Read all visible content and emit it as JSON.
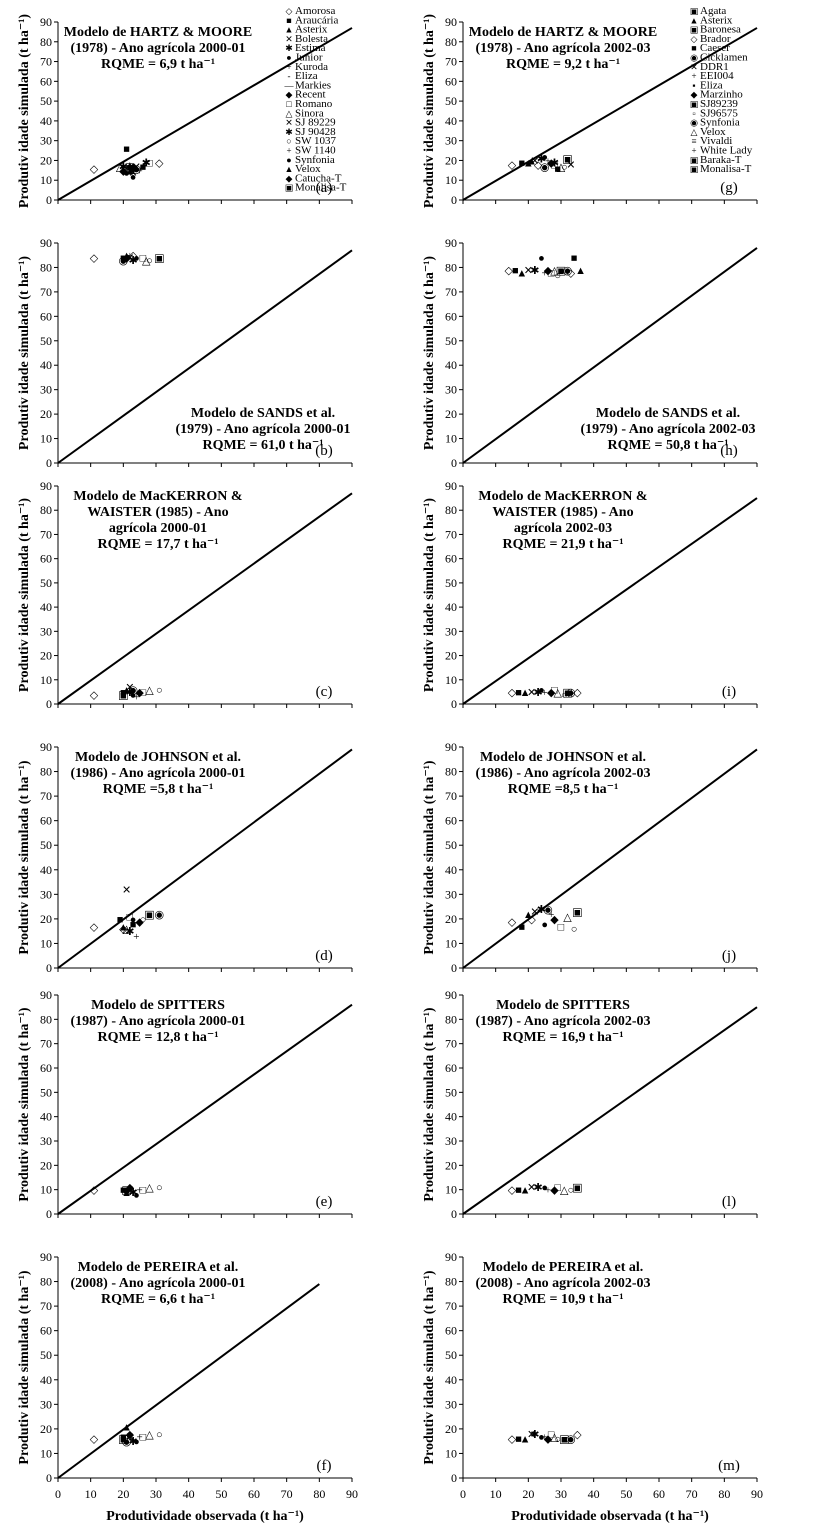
{
  "axis_ticks": [
    "0",
    "10",
    "20",
    "30",
    "40",
    "50",
    "60",
    "70",
    "80",
    "90"
  ],
  "chart_data": [
    {
      "id": "a",
      "type": "scatter",
      "letter": "(a)",
      "ylabel": "Produtiv idade simulada (t ha⁻¹)",
      "xlabel": "",
      "annotation": [
        "Modelo de HARTZ & MOORE",
        "(1978) - Ano agrícola 2000-01",
        "RQME = 6,9 t ha⁻¹"
      ],
      "ann_pos": "top-left",
      "xlim": [
        0,
        90
      ],
      "ylim": [
        0,
        90
      ],
      "line": [
        [
          0,
          0
        ],
        [
          90,
          87
        ]
      ],
      "points": [
        [
          11,
          16
        ],
        [
          21,
          26
        ],
        [
          22,
          18
        ],
        [
          23,
          14
        ],
        [
          20,
          17
        ],
        [
          23,
          12
        ],
        [
          25,
          15
        ],
        [
          20,
          15
        ],
        [
          22,
          16
        ],
        [
          19,
          17
        ],
        [
          21,
          15
        ],
        [
          22,
          17
        ],
        [
          24,
          16
        ],
        [
          31,
          19
        ],
        [
          26,
          17
        ],
        [
          22,
          15
        ],
        [
          24,
          17
        ],
        [
          27,
          19
        ],
        [
          21,
          14
        ],
        [
          21,
          17
        ],
        [
          23,
          17
        ],
        [
          28,
          19
        ],
        [
          22,
          16
        ]
      ]
    },
    {
      "id": "g",
      "type": "scatter",
      "letter": "(g)",
      "ylabel": "Produtiv idade simulada (t ha⁻¹)",
      "xlabel": "",
      "annotation": [
        "Modelo de HARTZ & MOORE",
        "(1978) - Ano agrícola 2002-03",
        "RQME = 9,2 t ha⁻¹"
      ],
      "ann_pos": "top-left",
      "xlim": [
        0,
        90
      ],
      "ylim": [
        0,
        90
      ],
      "line": [
        [
          0,
          0
        ],
        [
          90,
          87
        ]
      ],
      "points": [
        [
          15,
          18
        ],
        [
          18,
          19
        ],
        [
          20,
          19
        ],
        [
          22,
          20
        ],
        [
          24,
          21
        ],
        [
          25,
          22
        ],
        [
          26,
          20
        ],
        [
          27,
          19
        ],
        [
          28,
          18
        ],
        [
          30,
          17
        ],
        [
          31,
          17
        ],
        [
          32,
          21
        ],
        [
          25,
          17
        ],
        [
          23,
          18
        ],
        [
          29,
          16
        ],
        [
          21,
          20
        ],
        [
          33,
          18
        ],
        [
          28,
          19
        ]
      ]
    },
    {
      "id": "b",
      "type": "scatter",
      "letter": "(b)",
      "ylabel": "Produtiv idade simulada (t ha⁻¹)",
      "xlabel": "",
      "annotation": [
        "Modelo de SANDS et al.",
        "(1979) - Ano agrícola 2000-01",
        "RQME = 61,0 t ha⁻¹"
      ],
      "ann_pos": "bottom-right",
      "xlim": [
        0,
        90
      ],
      "ylim": [
        0,
        90
      ],
      "line": [
        [
          0,
          0
        ],
        [
          90,
          87
        ]
      ],
      "points": [
        [
          11,
          84
        ],
        [
          20,
          84
        ],
        [
          21,
          85
        ],
        [
          22,
          84
        ],
        [
          23,
          83
        ],
        [
          24,
          84
        ],
        [
          22,
          85
        ],
        [
          21,
          84
        ],
        [
          26,
          84
        ],
        [
          27,
          83
        ],
        [
          28,
          83
        ],
        [
          31,
          84
        ],
        [
          20,
          83
        ],
        [
          23,
          85
        ]
      ]
    },
    {
      "id": "h",
      "type": "scatter",
      "letter": "(h)",
      "ylabel": "Produtiv idade simulada (t ha⁻¹)",
      "xlabel": "",
      "annotation": [
        "Modelo de SANDS  et al.",
        "(1979) -  Ano agrícola 2002-03",
        "RQME = 50,8 t ha⁻¹"
      ],
      "ann_pos": "bottom-right",
      "xlim": [
        0,
        90
      ],
      "ylim": [
        0,
        90
      ],
      "line": [
        [
          0,
          0
        ],
        [
          90,
          88
        ]
      ],
      "points": [
        [
          14,
          79
        ],
        [
          16,
          79
        ],
        [
          18,
          78
        ],
        [
          20,
          79
        ],
        [
          22,
          79
        ],
        [
          24,
          84
        ],
        [
          25,
          78
        ],
        [
          26,
          79
        ],
        [
          27,
          78
        ],
        [
          28,
          79
        ],
        [
          29,
          77
        ],
        [
          30,
          79
        ],
        [
          32,
          79
        ],
        [
          33,
          78
        ],
        [
          34,
          84
        ],
        [
          36,
          79
        ]
      ]
    },
    {
      "id": "c",
      "type": "scatter",
      "letter": "(c)",
      "ylabel": "Produtiv idade simulada (t ha⁻¹)",
      "xlabel": "",
      "annotation": [
        "Modelo de MacKERRON &",
        "WAISTER (1985) - Ano",
        "agrícola  2000-01",
        "RQME = 17,7 t ha⁻¹"
      ],
      "ann_pos": "top-left",
      "xlim": [
        0,
        90
      ],
      "ylim": [
        0,
        90
      ],
      "line": [
        [
          0,
          0
        ],
        [
          90,
          87
        ]
      ],
      "points": [
        [
          11,
          4
        ],
        [
          20,
          5
        ],
        [
          21,
          6
        ],
        [
          22,
          7
        ],
        [
          22,
          5
        ],
        [
          23,
          4
        ],
        [
          24,
          3
        ],
        [
          25,
          5
        ],
        [
          26,
          5
        ],
        [
          28,
          6
        ],
        [
          31,
          6
        ],
        [
          20,
          4
        ],
        [
          23,
          6
        ]
      ]
    },
    {
      "id": "i",
      "type": "scatter",
      "letter": "(i)",
      "ylabel": "Produtiv idade simulada (t ha⁻¹)",
      "xlabel": "",
      "annotation": [
        "Modelo de MacKERRON &",
        "WAISTER (1985) - Ano",
        "agrícola 2002-03",
        "RQME = 21,9 t ha⁻¹"
      ],
      "ann_pos": "top-left",
      "xlim": [
        0,
        90
      ],
      "ylim": [
        0,
        90
      ],
      "line": [
        [
          0,
          0
        ],
        [
          90,
          85
        ]
      ],
      "points": [
        [
          15,
          5
        ],
        [
          17,
          5
        ],
        [
          19,
          5
        ],
        [
          21,
          5
        ],
        [
          23,
          5
        ],
        [
          24,
          6
        ],
        [
          25,
          5
        ],
        [
          27,
          5
        ],
        [
          28,
          6
        ],
        [
          29,
          5
        ],
        [
          31,
          4
        ],
        [
          32,
          5
        ],
        [
          33,
          5
        ],
        [
          35,
          5
        ]
      ]
    },
    {
      "id": "d",
      "type": "scatter",
      "letter": "(d)",
      "ylabel": "Produtiv idade simulada (t ha⁻¹)",
      "xlabel": "",
      "annotation": [
        "Modelo de JOHNSON et al.",
        "(1986) - Ano agrícola 2000-01",
        "RQME =5,8 t ha⁻¹"
      ],
      "ann_pos": "top-left",
      "xlim": [
        0,
        90
      ],
      "ylim": [
        0,
        90
      ],
      "line": [
        [
          0,
          0
        ],
        [
          90,
          89
        ]
      ],
      "points": [
        [
          11,
          17
        ],
        [
          19,
          20
        ],
        [
          20,
          17
        ],
        [
          21,
          32
        ],
        [
          22,
          15
        ],
        [
          23,
          20
        ],
        [
          24,
          13
        ],
        [
          25,
          19
        ],
        [
          22,
          21
        ],
        [
          21,
          16
        ],
        [
          26,
          20
        ],
        [
          28,
          22
        ],
        [
          31,
          22
        ],
        [
          20,
          16
        ],
        [
          23,
          18
        ]
      ]
    },
    {
      "id": "j",
      "type": "scatter",
      "letter": "(j)",
      "ylabel": "Produtiv idade simulada (t ha⁻¹)",
      "xlabel": "",
      "annotation": [
        "Modelo de JOHNSON et al.",
        "(1986) - Ano agrícola  2002-03",
        "RQME =8,5 t ha⁻¹"
      ],
      "ann_pos": "top-left",
      "xlim": [
        0,
        90
      ],
      "ylim": [
        0,
        90
      ],
      "line": [
        [
          0,
          0
        ],
        [
          90,
          89
        ]
      ],
      "points": [
        [
          15,
          19
        ],
        [
          18,
          17
        ],
        [
          20,
          22
        ],
        [
          22,
          23
        ],
        [
          24,
          24
        ],
        [
          25,
          18
        ],
        [
          27,
          22
        ],
        [
          28,
          20
        ],
        [
          30,
          17
        ],
        [
          32,
          21
        ],
        [
          34,
          16
        ],
        [
          35,
          23
        ],
        [
          26,
          24
        ],
        [
          21,
          20
        ]
      ]
    },
    {
      "id": "e",
      "type": "scatter",
      "letter": "(e)",
      "ylabel": "Produtiv idade simulada (t ha⁻¹)",
      "xlabel": "",
      "annotation": [
        "Modelo de SPITTERS",
        "(1987) - Ano agrícola 2000-01",
        "RQME = 12,8 t ha⁻¹"
      ],
      "ann_pos": "top-left",
      "xlim": [
        0,
        90
      ],
      "ylim": [
        0,
        90
      ],
      "line": [
        [
          0,
          0
        ],
        [
          90,
          86
        ]
      ],
      "points": [
        [
          11,
          10
        ],
        [
          20,
          10
        ],
        [
          21,
          9
        ],
        [
          22,
          10
        ],
        [
          23,
          9
        ],
        [
          24,
          8
        ],
        [
          25,
          10
        ],
        [
          22,
          11
        ],
        [
          26,
          10
        ],
        [
          28,
          11
        ],
        [
          31,
          11
        ],
        [
          21,
          10
        ]
      ]
    },
    {
      "id": "l",
      "type": "scatter",
      "letter": "(l)",
      "ylabel": "Produtiv idade simulada (t ha⁻¹)",
      "xlabel": "",
      "annotation": [
        "Modelo de SPITTERS",
        "(1987) - Ano agrícola  2002-03",
        "RQME = 16,9 t ha⁻¹"
      ],
      "ann_pos": "top-left",
      "xlim": [
        0,
        90
      ],
      "ylim": [
        0,
        90
      ],
      "line": [
        [
          0,
          0
        ],
        [
          90,
          85
        ]
      ],
      "points": [
        [
          15,
          10
        ],
        [
          17,
          10
        ],
        [
          19,
          10
        ],
        [
          21,
          11
        ],
        [
          23,
          11
        ],
        [
          25,
          11
        ],
        [
          26,
          10
        ],
        [
          28,
          10
        ],
        [
          29,
          11
        ],
        [
          31,
          10
        ],
        [
          33,
          10
        ],
        [
          35,
          11
        ]
      ]
    },
    {
      "id": "f",
      "type": "scatter",
      "letter": "(f)",
      "ylabel": "Produtiv idade simulada (t ha⁻¹)",
      "xlabel": "Produtividade observada (t ha⁻¹)",
      "annotation": [
        "Modelo de PEREIRA  et al.",
        "(2008) - Ano agrícola 2000-01",
        "RQME = 6,6 t ha⁻¹"
      ],
      "ann_pos": "top-left",
      "xlim": [
        0,
        90
      ],
      "ylim": [
        0,
        90
      ],
      "line": [
        [
          0,
          0
        ],
        [
          80,
          79
        ]
      ],
      "points": [
        [
          11,
          16
        ],
        [
          20,
          17
        ],
        [
          21,
          21
        ],
        [
          22,
          17
        ],
        [
          23,
          15
        ],
        [
          24,
          15
        ],
        [
          25,
          17
        ],
        [
          22,
          18
        ],
        [
          26,
          17
        ],
        [
          28,
          18
        ],
        [
          31,
          18
        ],
        [
          20,
          16
        ],
        [
          21,
          15
        ]
      ]
    },
    {
      "id": "m",
      "type": "scatter",
      "letter": "(m)",
      "ylabel": "Produtiv idade simulada (t ha⁻¹)",
      "xlabel": "Produtividade observada (t ha⁻¹)",
      "annotation": [
        "Modelo de PEREIRA et al.",
        "(2008) - Ano agrícola  2002-03",
        "RQME = 10,9 t ha⁻¹"
      ],
      "ann_pos": "top-left",
      "xlim": [
        0,
        90
      ],
      "ylim": [
        0,
        90
      ],
      "line": [],
      "points": [
        [
          15,
          16
        ],
        [
          17,
          16
        ],
        [
          19,
          16
        ],
        [
          21,
          18
        ],
        [
          22,
          18
        ],
        [
          24,
          17
        ],
        [
          25,
          17
        ],
        [
          26,
          16
        ],
        [
          27,
          18
        ],
        [
          28,
          17
        ],
        [
          29,
          16
        ],
        [
          31,
          16
        ],
        [
          33,
          16
        ],
        [
          35,
          18
        ]
      ]
    }
  ],
  "legends": {
    "left": {
      "entries": [
        "Amorosa",
        "Araucária",
        "Asterix",
        "Bolesta",
        "Estima",
        "Junior",
        "Kuroda",
        "Eliza",
        "Markies",
        "Recent",
        "Romano",
        "Sinora",
        "SJ 89229",
        "SJ 90428",
        "SW 1037",
        "SW 1140",
        "Synfonia",
        "Velox",
        "Catucha-T",
        "Monalisa-T"
      ],
      "symbols": [
        "◇",
        "■",
        "▲",
        "✕",
        "✱",
        "●",
        "+",
        "-",
        "—",
        "◆",
        "□",
        "△",
        "✕",
        "✱",
        "○",
        "+",
        "●",
        "▲",
        "◆",
        "▣"
      ]
    },
    "right": {
      "entries": [
        "Agata",
        "Asterix",
        "Baronesa",
        "Brador",
        "Caeser",
        "Cicklamen",
        "DDR1",
        "EEI004",
        "Eliza",
        "Marzinho",
        "SJ89239",
        "SJ96575",
        "Synfonia",
        "Velox",
        "Vivaldi",
        "White Lady",
        "Baraka-T",
        "Monalisa-T"
      ],
      "symbols": [
        "▣",
        "▲",
        "▣",
        "◇",
        "■",
        "◉",
        "✕",
        "+",
        "▪",
        "◆",
        "▣",
        "▫",
        "◉",
        "△",
        "≡",
        "+",
        "▣",
        "▣"
      ]
    }
  }
}
